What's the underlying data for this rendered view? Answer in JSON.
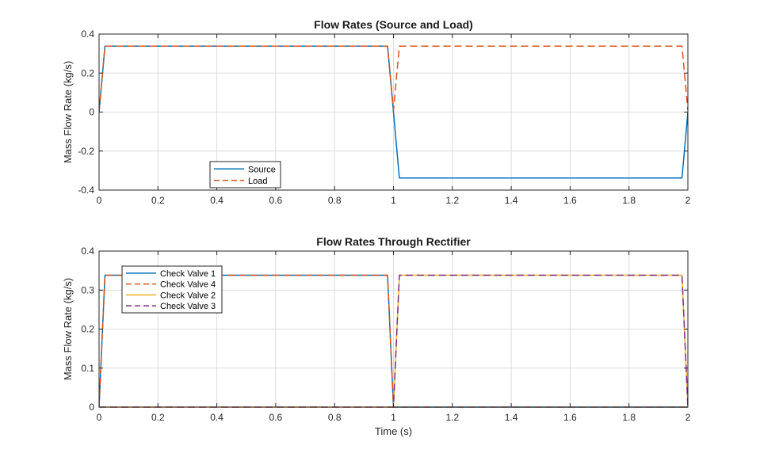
{
  "chart_data": [
    {
      "type": "line",
      "title": "Flow Rates (Source and Load)",
      "xlabel": "",
      "ylabel": "Mass Flow Rate (kg/s)",
      "xlim": [
        0,
        2
      ],
      "ylim": [
        -0.4,
        0.4
      ],
      "xticks": [
        0,
        0.2,
        0.4,
        0.6,
        0.8,
        1,
        1.2,
        1.4,
        1.6,
        1.8,
        2
      ],
      "xtick_labels": [
        "0",
        "0.2",
        "0.4",
        "0.6",
        "0.8",
        "1",
        "1.2",
        "1.4",
        "1.6",
        "1.8",
        "2"
      ],
      "yticks": [
        -0.4,
        -0.2,
        0,
        0.2,
        0.4
      ],
      "ytick_labels": [
        "-0.4",
        "-0.2",
        "0",
        "0.2",
        "0.4"
      ],
      "grid": true,
      "legend_position": "bottom-left",
      "series": [
        {
          "name": "Source",
          "color": "#0072BD",
          "dash": "solid",
          "x": [
            0,
            0.02,
            0.98,
            1.0,
            1.02,
            1.98,
            2.0
          ],
          "y": [
            0,
            0.338,
            0.338,
            0,
            -0.338,
            -0.338,
            0
          ]
        },
        {
          "name": "Load",
          "color": "#D95319",
          "dash": "dashed",
          "x": [
            0,
            0.02,
            0.98,
            1.0,
            1.02,
            1.98,
            2.0
          ],
          "y": [
            0,
            0.338,
            0.338,
            0.01,
            0.338,
            0.338,
            0.01
          ]
        }
      ]
    },
    {
      "type": "line",
      "title": "Flow Rates Through Rectifier",
      "xlabel": "Time (s)",
      "ylabel": "Mass Flow Rate (kg/s)",
      "xlim": [
        0,
        2
      ],
      "ylim": [
        0,
        0.4
      ],
      "xticks": [
        0,
        0.2,
        0.4,
        0.6,
        0.8,
        1,
        1.2,
        1.4,
        1.6,
        1.8,
        2
      ],
      "xtick_labels": [
        "0",
        "0.2",
        "0.4",
        "0.6",
        "0.8",
        "1",
        "1.2",
        "1.4",
        "1.6",
        "1.8",
        "2"
      ],
      "yticks": [
        0,
        0.1,
        0.2,
        0.3,
        0.4
      ],
      "ytick_labels": [
        "0",
        "0.1",
        "0.2",
        "0.3",
        "0.4"
      ],
      "grid": true,
      "legend_position": "top-left",
      "series": [
        {
          "name": "Check Valve 1",
          "color": "#0072BD",
          "dash": "solid",
          "x": [
            0,
            0.02,
            0.98,
            1.0,
            1.02,
            2.0
          ],
          "y": [
            0,
            0.338,
            0.338,
            0,
            0,
            0
          ]
        },
        {
          "name": "Check Valve 4",
          "color": "#D95319",
          "dash": "dashed",
          "x": [
            0,
            0.02,
            0.98,
            1.0,
            1.02,
            2.0
          ],
          "y": [
            0,
            0.338,
            0.338,
            0,
            0,
            0
          ]
        },
        {
          "name": "Check Valve 2",
          "color": "#EDB120",
          "dash": "solid",
          "x": [
            0,
            0.98,
            1.0,
            1.02,
            1.98,
            2.0
          ],
          "y": [
            0,
            0,
            0,
            0.338,
            0.338,
            0
          ]
        },
        {
          "name": "Check Valve 3",
          "color": "#7E2F8E",
          "dash": "dashed",
          "x": [
            0,
            0.98,
            1.0,
            1.02,
            1.98,
            2.0
          ],
          "y": [
            0,
            0,
            0,
            0.338,
            0.338,
            0
          ]
        }
      ]
    }
  ]
}
